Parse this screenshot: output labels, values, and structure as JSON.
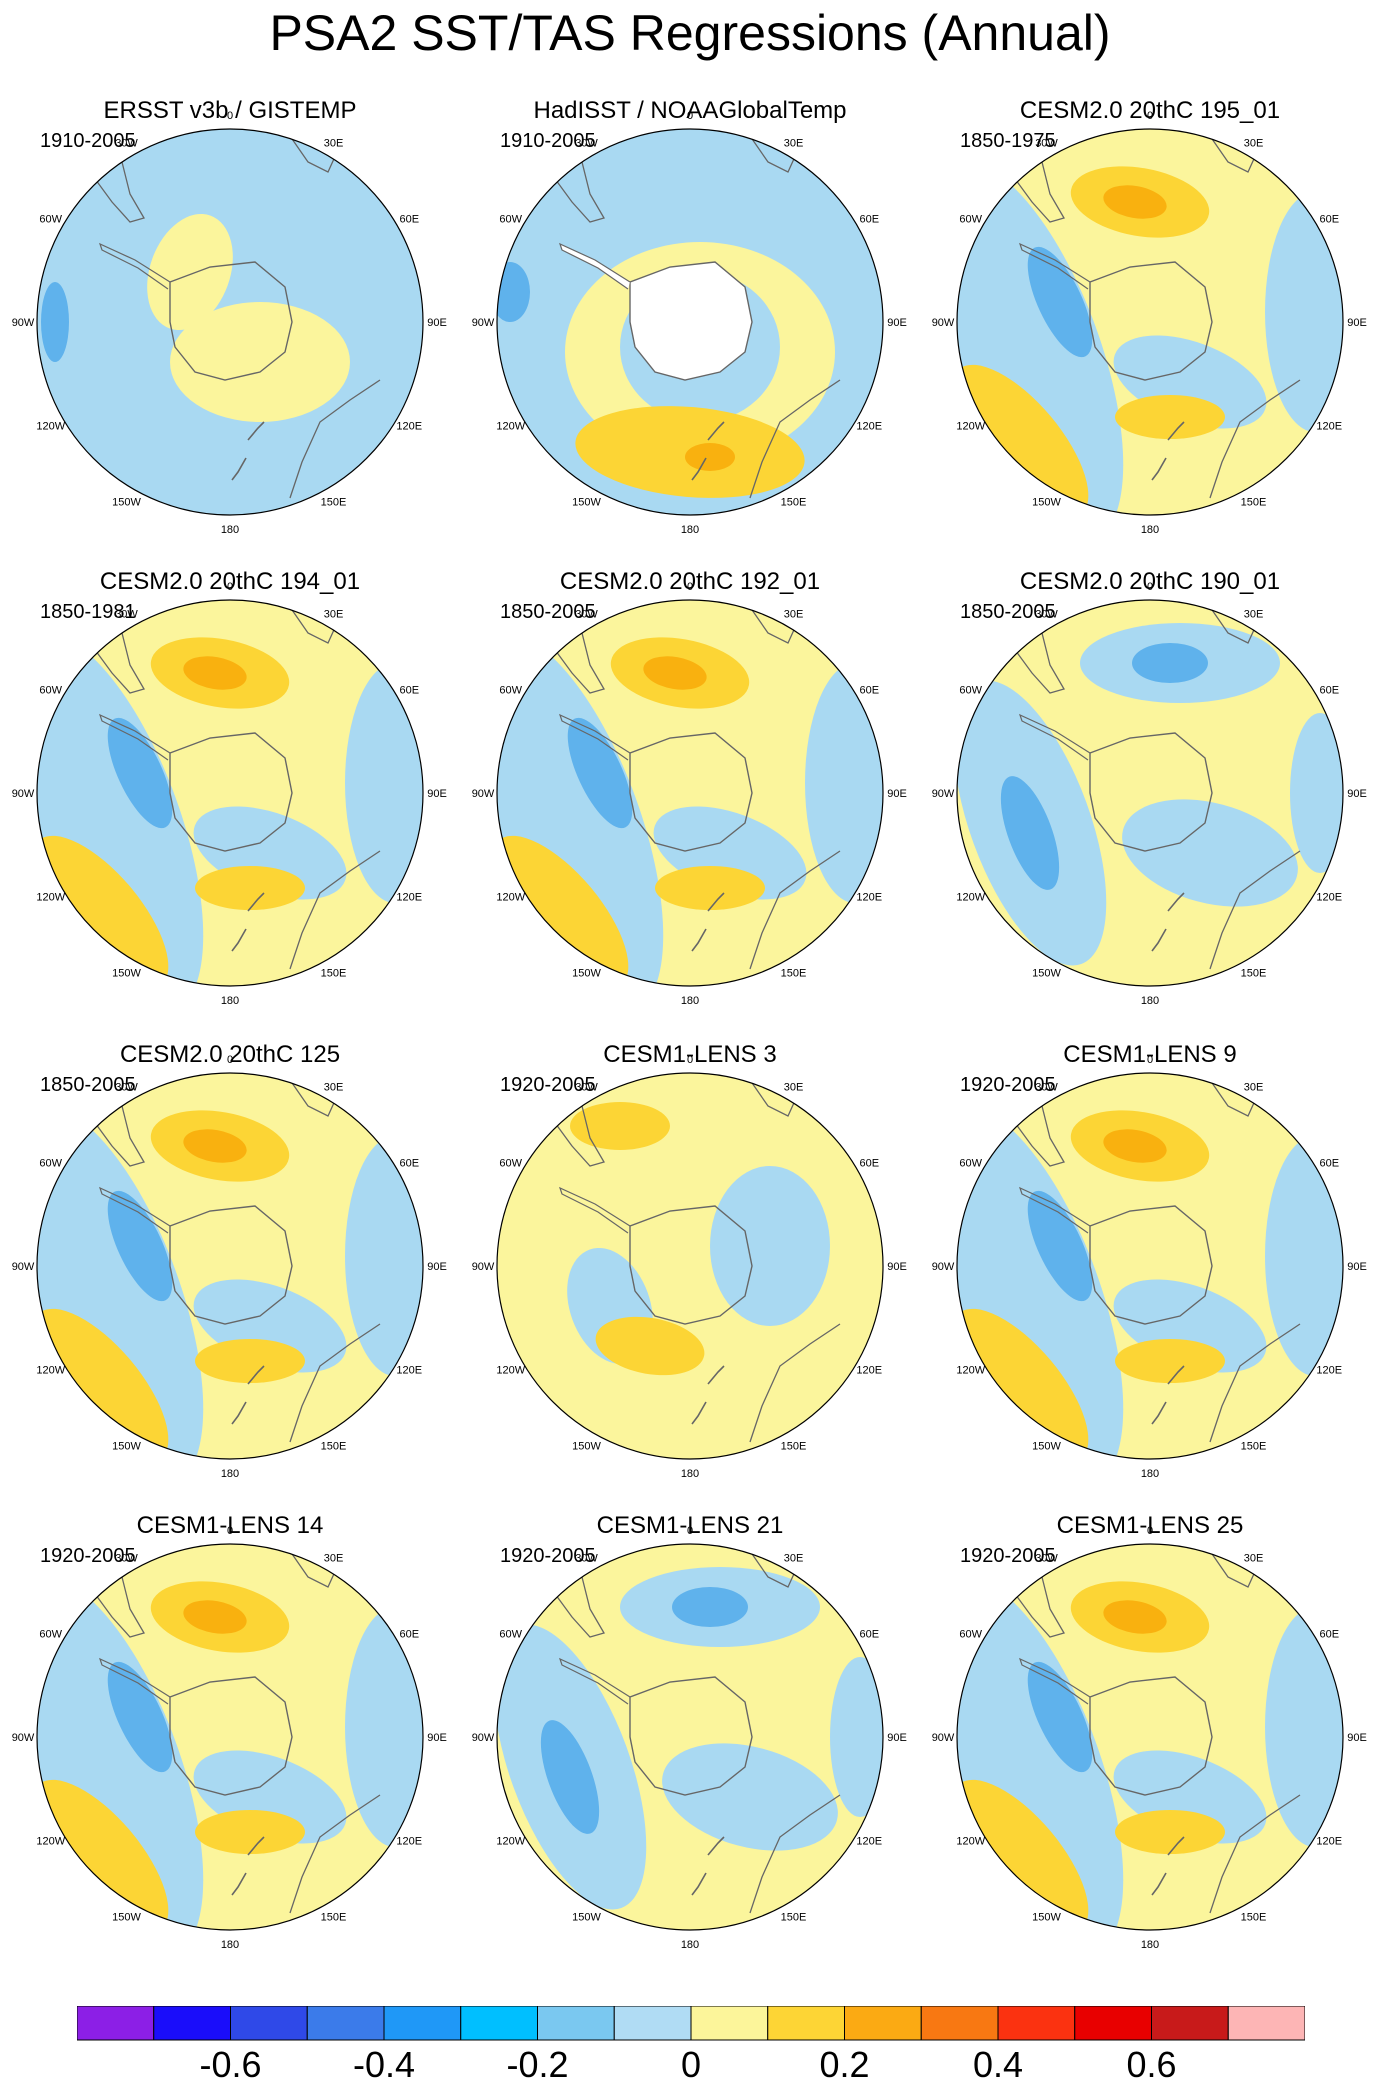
{
  "title": "PSA2 SST/TAS Regressions (Annual)",
  "colors": {
    "neg_strong": "#5fb2ec",
    "neg": "#a9d9f2",
    "pos": "#fbf59c",
    "pos_strong": "#fcd535",
    "pos_stronger": "#f9b10f",
    "land": "#ffffff",
    "coast": "#666666"
  },
  "longitude_labels": [
    "0",
    "30E",
    "60E",
    "90E",
    "120E",
    "150E",
    "180",
    "150W",
    "120W",
    "90W",
    "60W",
    "30W"
  ],
  "panels": [
    {
      "name": "ERSST v3b / GISTEMP",
      "years": "1910-2005",
      "pattern": "obs"
    },
    {
      "name": "HadISST / NOAAGlobalTemp",
      "years": "1910-2005",
      "pattern": "had"
    },
    {
      "name": "CESM2.0 20thC 195_01",
      "years": "1850-1975",
      "pattern": "psa"
    },
    {
      "name": "CESM2.0 20thC 194_01",
      "years": "1850-1981",
      "pattern": "psa"
    },
    {
      "name": "CESM2.0 20thC 192_01",
      "years": "1850-2005",
      "pattern": "psa"
    },
    {
      "name": "CESM2.0 20thC 190_01",
      "years": "1850-2005",
      "pattern": "neg"
    },
    {
      "name": "CESM2.0 20thC 125",
      "years": "1850-2005",
      "pattern": "psa"
    },
    {
      "name": "CESM1-LENS 3",
      "years": "1920-2005",
      "pattern": "weak"
    },
    {
      "name": "CESM1-LENS 9",
      "years": "1920-2005",
      "pattern": "psa"
    },
    {
      "name": "CESM1-LENS 14",
      "years": "1920-2005",
      "pattern": "psa"
    },
    {
      "name": "CESM1-LENS 21",
      "years": "1920-2005",
      "pattern": "neg"
    },
    {
      "name": "CESM1-LENS 25",
      "years": "1920-2005",
      "pattern": "psa"
    }
  ],
  "colorbar": {
    "colors": [
      "#8c1fe6",
      "#1a0dfa",
      "#2f49e8",
      "#3b7bea",
      "#1f98f7",
      "#00bfff",
      "#7ac8f0",
      "#b0dcf4",
      "#fcf59a",
      "#fdd535",
      "#fbaa13",
      "#f87812",
      "#fb3210",
      "#e80000",
      "#c81a1a",
      "#fdb5b5"
    ],
    "labels": [
      "-0.6",
      "-0.4",
      "-0.2",
      "0",
      "0.2",
      "0.4",
      "0.6"
    ]
  }
}
